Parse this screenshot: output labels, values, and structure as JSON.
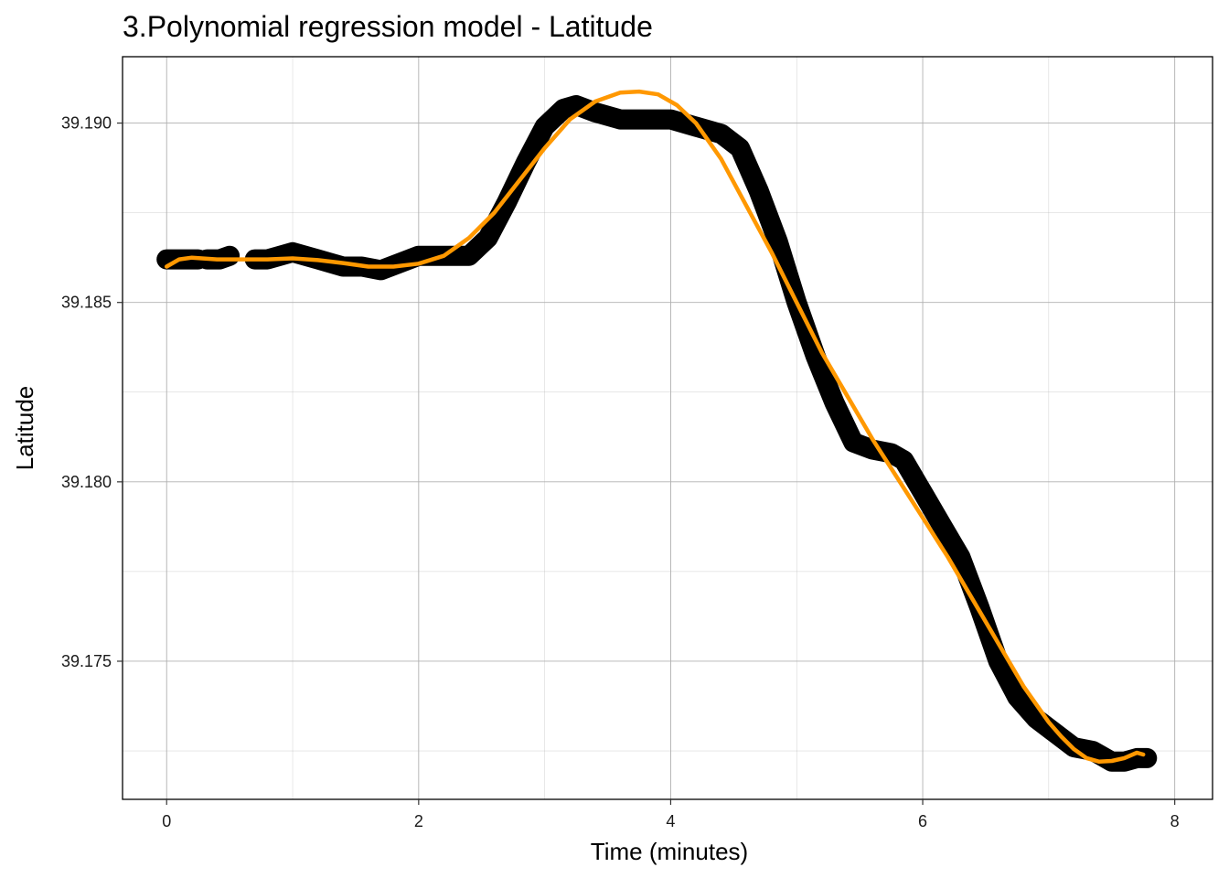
{
  "chart_data": {
    "type": "scatter",
    "title": "3.Polynomial regression model - Latitude",
    "xlabel": "Time (minutes)",
    "ylabel": "Latitude",
    "xlim": [
      -0.35,
      8.3
    ],
    "ylim": [
      39.17115,
      39.19185
    ],
    "x_ticks": [
      0,
      2,
      4,
      6,
      8
    ],
    "x_tick_labels": [
      "0",
      "2",
      "4",
      "6",
      "8"
    ],
    "y_ticks": [
      39.175,
      39.18,
      39.185,
      39.19
    ],
    "y_tick_labels": [
      "39.175",
      "39.180",
      "39.185",
      "39.190"
    ],
    "grid": true,
    "colors": {
      "observed": "#000000",
      "fit": "#FF9800",
      "grid": "#b0b0b0",
      "frame": "#000000"
    },
    "series": [
      {
        "style": "thick-points",
        "segments": [
          [
            [
              0.0,
              39.1862
            ],
            [
              0.12,
              39.1862
            ],
            [
              0.25,
              39.1862
            ]
          ],
          [
            [
              0.32,
              39.1862
            ],
            [
              0.42,
              39.1862
            ],
            [
              0.5,
              39.1863
            ]
          ],
          [
            [
              0.7,
              39.1862
            ],
            [
              0.8,
              39.1862
            ],
            [
              0.9,
              39.1863
            ],
            [
              1.0,
              39.1864
            ],
            [
              1.1,
              39.1863
            ],
            [
              1.2,
              39.1862
            ],
            [
              1.3,
              39.1861
            ],
            [
              1.4,
              39.186
            ],
            [
              1.55,
              39.186
            ],
            [
              1.7,
              39.1859
            ],
            [
              1.85,
              39.1861
            ],
            [
              2.0,
              39.1863
            ],
            [
              2.2,
              39.1863
            ],
            [
              2.4,
              39.1863
            ],
            [
              2.55,
              39.1868
            ],
            [
              2.7,
              39.1878
            ],
            [
              2.85,
              39.1889
            ],
            [
              3.0,
              39.1899
            ],
            [
              3.15,
              39.1904
            ],
            [
              3.25,
              39.1905
            ],
            [
              3.4,
              39.1903
            ],
            [
              3.6,
              39.1901
            ],
            [
              3.8,
              39.1901
            ],
            [
              4.0,
              39.1901
            ],
            [
              4.2,
              39.1899
            ],
            [
              4.4,
              39.1897
            ],
            [
              4.55,
              39.1893
            ],
            [
              4.7,
              39.1881
            ],
            [
              4.85,
              39.1867
            ],
            [
              5.0,
              39.185
            ],
            [
              5.15,
              39.1835
            ],
            [
              5.3,
              39.1822
            ],
            [
              5.45,
              39.1811
            ],
            [
              5.6,
              39.1809
            ],
            [
              5.75,
              39.1808
            ],
            [
              5.85,
              39.1806
            ],
            [
              6.0,
              39.1797
            ],
            [
              6.15,
              39.1788
            ],
            [
              6.3,
              39.1779
            ],
            [
              6.45,
              39.1765
            ],
            [
              6.6,
              39.175
            ],
            [
              6.75,
              39.174
            ],
            [
              6.9,
              39.1734
            ],
            [
              7.05,
              39.173
            ],
            [
              7.2,
              39.1726
            ],
            [
              7.35,
              39.1725
            ],
            [
              7.5,
              39.1722
            ],
            [
              7.6,
              39.1722
            ],
            [
              7.7,
              39.1723
            ],
            [
              7.78,
              39.1723
            ]
          ]
        ]
      },
      {
        "style": "fitted-line",
        "points": [
          [
            0.0,
            39.186
          ],
          [
            0.1,
            39.1862
          ],
          [
            0.2,
            39.18625
          ],
          [
            0.4,
            39.1862
          ],
          [
            0.6,
            39.1862
          ],
          [
            0.8,
            39.1862
          ],
          [
            1.0,
            39.18623
          ],
          [
            1.2,
            39.18618
          ],
          [
            1.4,
            39.1861
          ],
          [
            1.6,
            39.186
          ],
          [
            1.8,
            39.186
          ],
          [
            2.0,
            39.18608
          ],
          [
            2.2,
            39.1863
          ],
          [
            2.4,
            39.1868
          ],
          [
            2.6,
            39.1875
          ],
          [
            2.8,
            39.1884
          ],
          [
            3.0,
            39.1893
          ],
          [
            3.2,
            39.1901
          ],
          [
            3.4,
            39.1906
          ],
          [
            3.6,
            39.19085
          ],
          [
            3.75,
            39.19088
          ],
          [
            3.9,
            39.1908
          ],
          [
            4.05,
            39.1905
          ],
          [
            4.2,
            39.19
          ],
          [
            4.4,
            39.189
          ],
          [
            4.6,
            39.1877
          ],
          [
            4.8,
            39.1864
          ],
          [
            5.0,
            39.185
          ],
          [
            5.2,
            39.1836
          ],
          [
            5.4,
            39.1824
          ],
          [
            5.6,
            39.1812
          ],
          [
            5.8,
            39.1801
          ],
          [
            6.0,
            39.179
          ],
          [
            6.2,
            39.1779
          ],
          [
            6.4,
            39.1767
          ],
          [
            6.6,
            39.1755
          ],
          [
            6.8,
            39.1743
          ],
          [
            7.0,
            39.1733
          ],
          [
            7.1,
            39.1729
          ],
          [
            7.2,
            39.17255
          ],
          [
            7.3,
            39.1723
          ],
          [
            7.4,
            39.1722
          ],
          [
            7.5,
            39.17222
          ],
          [
            7.6,
            39.1723
          ],
          [
            7.7,
            39.17245
          ],
          [
            7.75,
            39.1724
          ]
        ]
      }
    ]
  }
}
